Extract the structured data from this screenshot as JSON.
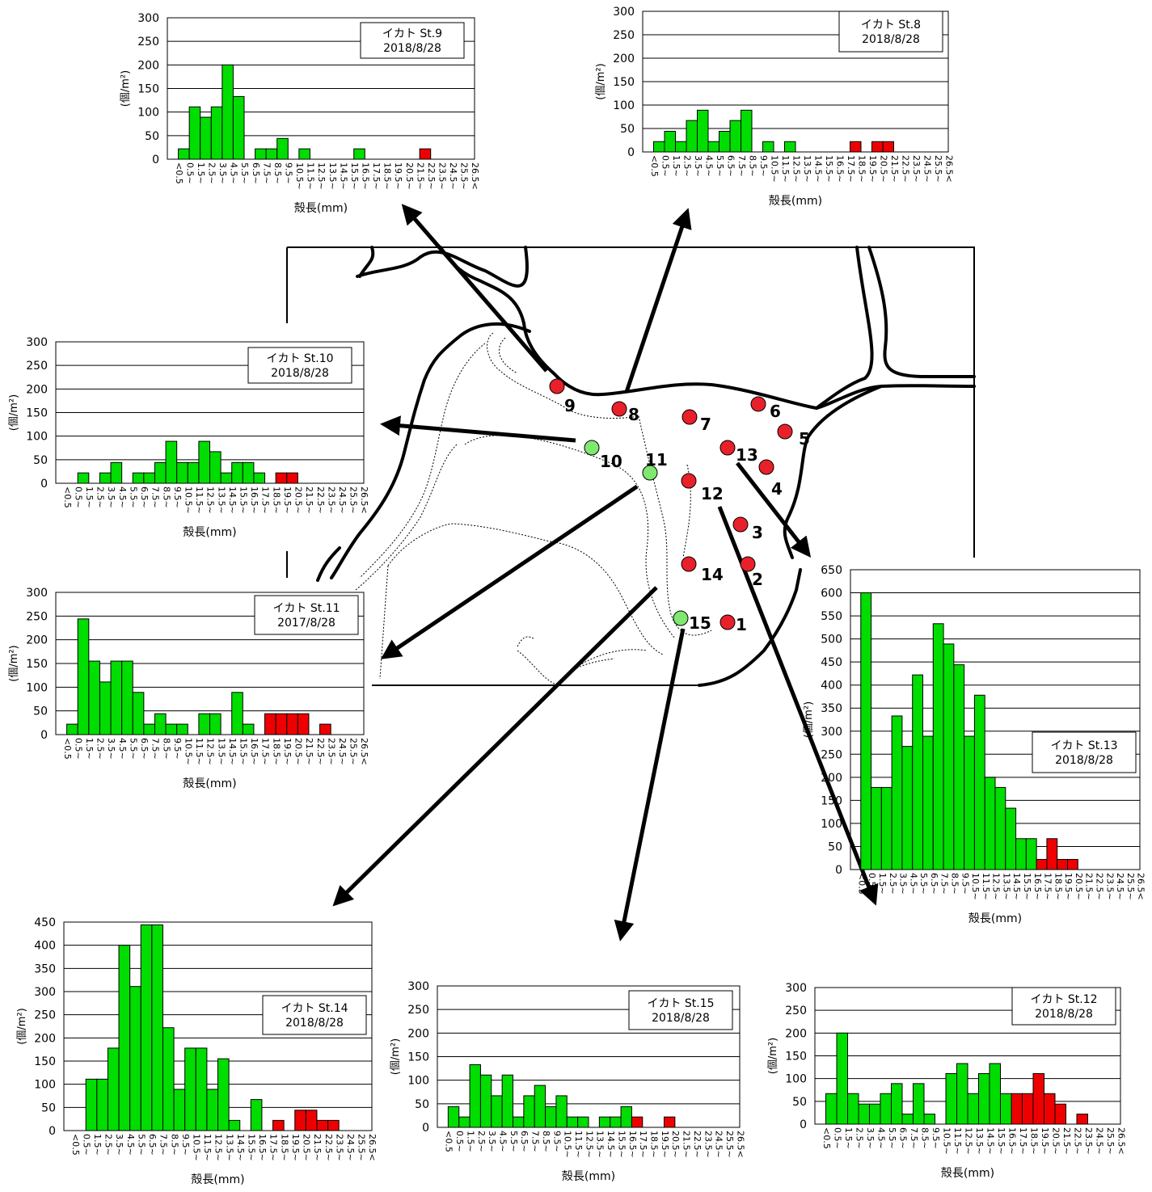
{
  "colors": {
    "normal": "#00dd00",
    "large": "#ee0000",
    "green_station": "#7fe86f",
    "red_station": "#e8202a"
  },
  "chart_data": [
    {
      "id": "st9",
      "type": "bar",
      "legend": {
        "line1": "イカト St.9",
        "line2": "2018/8/28"
      },
      "ylabel": "(個/m²)",
      "xlabel": "殻長(mm)",
      "ylim": [
        0,
        300
      ],
      "yticks": [
        0,
        50,
        100,
        150,
        200,
        250,
        300
      ],
      "tick_labels": [
        "<0.5",
        "0.5~",
        "1.5~",
        "2.5~",
        "3.5~",
        "4.5~",
        "5.5~",
        "6.5~",
        "7.5~",
        "8.5~",
        "9.5~",
        "10.5~",
        "11.5~",
        "12.5~",
        "13.5~",
        "14.5~",
        "15.5~",
        "16.5~",
        "17.5~",
        "18.5~",
        "19.5~",
        "20.5~",
        "21.5~",
        "22.5~",
        "23.5~",
        "24.5~",
        "25.5~",
        "26.5<"
      ],
      "values": [
        0,
        22,
        111,
        89,
        111,
        200,
        133,
        0,
        22,
        22,
        44,
        0,
        22,
        0,
        0,
        0,
        0,
        22,
        0,
        0,
        0,
        0,
        0,
        22,
        0,
        0,
        0,
        0
      ],
      "red_from": 18
    },
    {
      "id": "st8",
      "type": "bar",
      "legend": {
        "line1": "イカト St.8",
        "line2": "2018/8/28"
      },
      "ylabel": "(個/m²)",
      "xlabel": "殻長(mm)",
      "ylim": [
        0,
        300
      ],
      "yticks": [
        0,
        50,
        100,
        150,
        200,
        250,
        300
      ],
      "tick_labels": [
        "<0.5",
        "0.5~",
        "1.5~",
        "2.5~",
        "3.5~",
        "4.5~",
        "5.5~",
        "6.5~",
        "7.5~",
        "8.5~",
        "9.5~",
        "10.5~",
        "11.5~",
        "12.5~",
        "13.5~",
        "14.5~",
        "15.5~",
        "16.5~",
        "17.5~",
        "18.5~",
        "19.5~",
        "20.5~",
        "21.5~",
        "22.5~",
        "23.5~",
        "24.5~",
        "25.5~",
        "26.5<"
      ],
      "values": [
        0,
        22,
        44,
        22,
        67,
        89,
        22,
        44,
        67,
        89,
        0,
        22,
        0,
        22,
        0,
        0,
        0,
        0,
        0,
        22,
        0,
        22,
        22,
        0,
        0,
        0,
        0,
        0
      ],
      "red_from": 18
    },
    {
      "id": "st10",
      "type": "bar",
      "legend": {
        "line1": "イカト St.10",
        "line2": "2018/8/28"
      },
      "ylabel": "(個/m²)",
      "xlabel": "殻長(mm)",
      "ylim": [
        0,
        300
      ],
      "yticks": [
        0,
        50,
        100,
        150,
        200,
        250,
        300
      ],
      "tick_labels": [
        "<0.5",
        "0.5~",
        "1.5~",
        "2.5~",
        "3.5~",
        "4.5~",
        "5.5~",
        "6.5~",
        "7.5~",
        "8.5~",
        "9.5~",
        "10.5~",
        "11.5~",
        "12.5~",
        "13.5~",
        "14.5~",
        "15.5~",
        "16.5~",
        "17.5~",
        "18.5~",
        "19.5~",
        "20.5~",
        "21.5~",
        "22.5~",
        "23.5~",
        "24.5~",
        "25.5~",
        "26.5<"
      ],
      "values": [
        0,
        0,
        22,
        0,
        22,
        44,
        0,
        22,
        22,
        44,
        89,
        44,
        44,
        89,
        67,
        22,
        44,
        44,
        22,
        0,
        22,
        22,
        0,
        0,
        0,
        0,
        0,
        0
      ],
      "red_from": 19
    },
    {
      "id": "st11",
      "type": "bar",
      "legend": {
        "line1": "イカト St.11",
        "line2": "2017/8/28"
      },
      "ylabel": "(個/m²)",
      "xlabel": "殻長(mm)",
      "ylim": [
        0,
        300
      ],
      "yticks": [
        0,
        50,
        100,
        150,
        200,
        250,
        300
      ],
      "tick_labels": [
        "<0.5",
        "0.5~",
        "1.5~",
        "2.5~",
        "3.5~",
        "4.5~",
        "5.5~",
        "6.5~",
        "7.5~",
        "8.5~",
        "9.5~",
        "10.5~",
        "11.5~",
        "12.5~",
        "13.5~",
        "14.5~",
        "15.5~",
        "16.5~",
        "17.5~",
        "18.5~",
        "19.5~",
        "20.5~",
        "21.5~",
        "22.5~",
        "23.5~",
        "24.5~",
        "25.5~",
        "26.5<"
      ],
      "values": [
        0,
        22,
        244,
        155,
        111,
        155,
        155,
        89,
        22,
        44,
        22,
        22,
        0,
        44,
        44,
        0,
        89,
        22,
        0,
        44,
        44,
        44,
        44,
        0,
        22,
        0,
        0,
        0
      ],
      "red_from": 19
    },
    {
      "id": "st13",
      "type": "bar",
      "legend": {
        "line1": "イカト St.13",
        "line2": "2018/8/28"
      },
      "ylabel": "(個/m²)",
      "xlabel": "殻長(mm)",
      "ylim": [
        0,
        650
      ],
      "yticks": [
        0,
        50,
        100,
        150,
        200,
        250,
        300,
        350,
        400,
        450,
        500,
        550,
        600,
        650
      ],
      "tick_labels": [
        "<0.5",
        "0.5~",
        "1.5~",
        "2.5~",
        "3.5~",
        "4.5~",
        "5.5~",
        "6.5~",
        "7.5~",
        "8.5~",
        "9.5~",
        "10.5~",
        "11.5~",
        "12.5~",
        "13.5~",
        "14.5~",
        "15.5~",
        "16.5~",
        "17.5~",
        "18.5~",
        "19.5~",
        "20.5~",
        "21.5~",
        "22.5~",
        "23.5~",
        "24.5~",
        "25.5~",
        "26.5<"
      ],
      "values": [
        0,
        600,
        178,
        178,
        333,
        267,
        422,
        289,
        533,
        489,
        444,
        289,
        378,
        200,
        178,
        133,
        67,
        67,
        22,
        67,
        22,
        22,
        0,
        0,
        0,
        0,
        0,
        0
      ],
      "red_from": 18
    },
    {
      "id": "st14",
      "type": "bar",
      "legend": {
        "line1": "イカト St.14",
        "line2": "2018/8/28"
      },
      "ylabel": "(個/m²)",
      "xlabel": "殻長(mm)",
      "ylim": [
        0,
        450
      ],
      "yticks": [
        0,
        50,
        100,
        150,
        200,
        250,
        300,
        350,
        400,
        450
      ],
      "tick_labels": [
        "<0.5",
        "0.5~",
        "1.5~",
        "2.5~",
        "3.5~",
        "4.5~",
        "5.5~",
        "6.5~",
        "7.5~",
        "8.5~",
        "9.5~",
        "10.5~",
        "11.5~",
        "12.5~",
        "13.5~",
        "14.5~",
        "15.5~",
        "16.5~",
        "17.5~",
        "18.5~",
        "19.5~",
        "20.5~",
        "21.5~",
        "22.5~",
        "23.5~",
        "24.5~",
        "25.5~",
        "26.5<"
      ],
      "values": [
        0,
        0,
        111,
        111,
        178,
        400,
        311,
        444,
        444,
        222,
        89,
        178,
        178,
        89,
        155,
        22,
        0,
        67,
        0,
        22,
        0,
        44,
        44,
        22,
        22,
        0,
        0,
        0
      ],
      "red_from": 19
    },
    {
      "id": "st15",
      "type": "bar",
      "legend": {
        "line1": "イカト St.15",
        "line2": "2018/8/28"
      },
      "ylabel": "(個/m²)",
      "xlabel": "殻長(mm)",
      "ylim": [
        0,
        300
      ],
      "yticks": [
        0,
        50,
        100,
        150,
        200,
        250,
        300
      ],
      "tick_labels": [
        "<0.5",
        "0.5~",
        "1.5~",
        "2.5~",
        "3.5~",
        "4.5~",
        "5.5~",
        "6.5~",
        "7.5~",
        "8.5~",
        "9.5~",
        "10.5~",
        "11.5~",
        "12.5~",
        "13.5~",
        "14.5~",
        "15.5~",
        "16.5~",
        "17.5~",
        "18.5~",
        "19.5~",
        "20.5~",
        "21.5~",
        "22.5~",
        "23.5~",
        "24.5~",
        "25.5~",
        "26.5<"
      ],
      "values": [
        0,
        44,
        22,
        133,
        111,
        67,
        111,
        22,
        67,
        89,
        44,
        67,
        22,
        22,
        0,
        22,
        22,
        44,
        22,
        0,
        0,
        22,
        0,
        0,
        0,
        0,
        0,
        0
      ],
      "red_from": 18
    },
    {
      "id": "st12",
      "type": "bar",
      "legend": {
        "line1": "イカト St.12",
        "line2": "2018/8/28"
      },
      "ylabel": "(個/m²)",
      "xlabel": "殻長(mm)",
      "ylim": [
        0,
        300
      ],
      "yticks": [
        0,
        50,
        100,
        150,
        200,
        250,
        300
      ],
      "tick_labels": [
        "<0.5",
        "0.5~",
        "1.5~",
        "2.5~",
        "3.5~",
        "4.5~",
        "5.5~",
        "6.5~",
        "7.5~",
        "8.5~",
        "9.5~",
        "10.5~",
        "11.5~",
        "12.5~",
        "13.5~",
        "14.5~",
        "15.5~",
        "16.5~",
        "17.5~",
        "18.5~",
        "19.5~",
        "20.5~",
        "21.5~",
        "22.5~",
        "23.5~",
        "24.5~",
        "25.5~",
        "26.5<"
      ],
      "values": [
        0,
        67,
        200,
        67,
        44,
        44,
        67,
        89,
        22,
        89,
        22,
        0,
        111,
        133,
        67,
        111,
        133,
        67,
        67,
        67,
        111,
        67,
        44,
        0,
        22,
        0,
        0,
        0
      ],
      "red_from": 18
    }
  ],
  "map": {
    "stations": [
      {
        "label": "1",
        "status": "red"
      },
      {
        "label": "2",
        "status": "red"
      },
      {
        "label": "3",
        "status": "red"
      },
      {
        "label": "4",
        "status": "red"
      },
      {
        "label": "5",
        "status": "red"
      },
      {
        "label": "6",
        "status": "red"
      },
      {
        "label": "7",
        "status": "red"
      },
      {
        "label": "8",
        "status": "red"
      },
      {
        "label": "9",
        "status": "red"
      },
      {
        "label": "10",
        "status": "green"
      },
      {
        "label": "11",
        "status": "green"
      },
      {
        "label": "12",
        "status": "red"
      },
      {
        "label": "13",
        "status": "red"
      },
      {
        "label": "14",
        "status": "red"
      },
      {
        "label": "15",
        "status": "green"
      }
    ]
  }
}
